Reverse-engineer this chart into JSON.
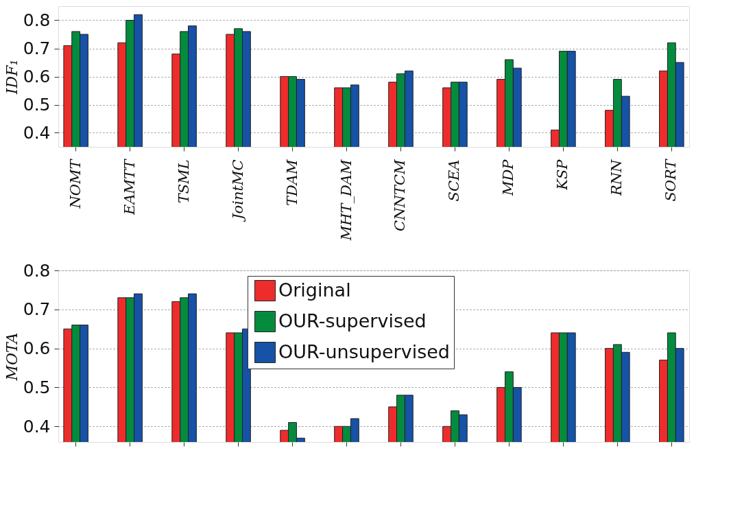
{
  "chart_data": [
    {
      "type": "bar",
      "ylabel": "IDF₁",
      "categories": [
        "NOMT",
        "EAMTT",
        "TSML",
        "JointMC",
        "TDAM",
        "MHT_DAM",
        "CNNTCM",
        "SCEA",
        "MDP",
        "KSP",
        "RNN",
        "SORT"
      ],
      "series": [
        {
          "color": "#ee2c2c",
          "values": [
            0.71,
            0.72,
            0.68,
            0.75,
            0.6,
            0.56,
            0.58,
            0.56,
            0.59,
            0.41,
            0.48,
            0.62
          ]
        },
        {
          "color": "#058b3e",
          "values": [
            0.76,
            0.8,
            0.76,
            0.77,
            0.6,
            0.56,
            0.61,
            0.58,
            0.66,
            0.69,
            0.59,
            0.72
          ]
        },
        {
          "color": "#1652a6",
          "values": [
            0.75,
            0.82,
            0.78,
            0.76,
            0.59,
            0.57,
            0.62,
            0.58,
            0.63,
            0.69,
            0.53,
            0.65
          ]
        }
      ],
      "ylim": [
        0.35,
        0.85
      ],
      "yticks": [
        0.4,
        0.5,
        0.6,
        0.7,
        0.8
      ],
      "grid": "y",
      "legend": false
    },
    {
      "type": "bar",
      "ylabel": "MOTA",
      "categories": [
        null,
        null,
        null,
        null,
        null,
        null,
        null,
        null,
        null,
        null,
        null,
        null
      ],
      "series": [
        {
          "name": "Original",
          "color": "#ee2c2c",
          "values": [
            0.65,
            0.73,
            0.72,
            0.64,
            0.39,
            0.4,
            0.45,
            0.4,
            0.5,
            0.64,
            0.6,
            0.57
          ]
        },
        {
          "name": "OUR-supervised",
          "color": "#058b3e",
          "values": [
            0.66,
            0.73,
            0.73,
            0.64,
            0.41,
            0.4,
            0.48,
            0.44,
            0.54,
            0.64,
            0.61,
            0.64
          ]
        },
        {
          "name": "OUR-unsupervised",
          "color": "#1652a6",
          "values": [
            0.66,
            0.74,
            0.74,
            0.65,
            0.37,
            0.42,
            0.48,
            0.43,
            0.5,
            0.64,
            0.59,
            0.6
          ]
        }
      ],
      "ylim": [
        0.36,
        0.8
      ],
      "yticks": [
        0.4,
        0.5,
        0.6,
        0.7,
        0.8
      ],
      "grid": "y",
      "legend": "top",
      "tick_labels": "y"
    }
  ]
}
